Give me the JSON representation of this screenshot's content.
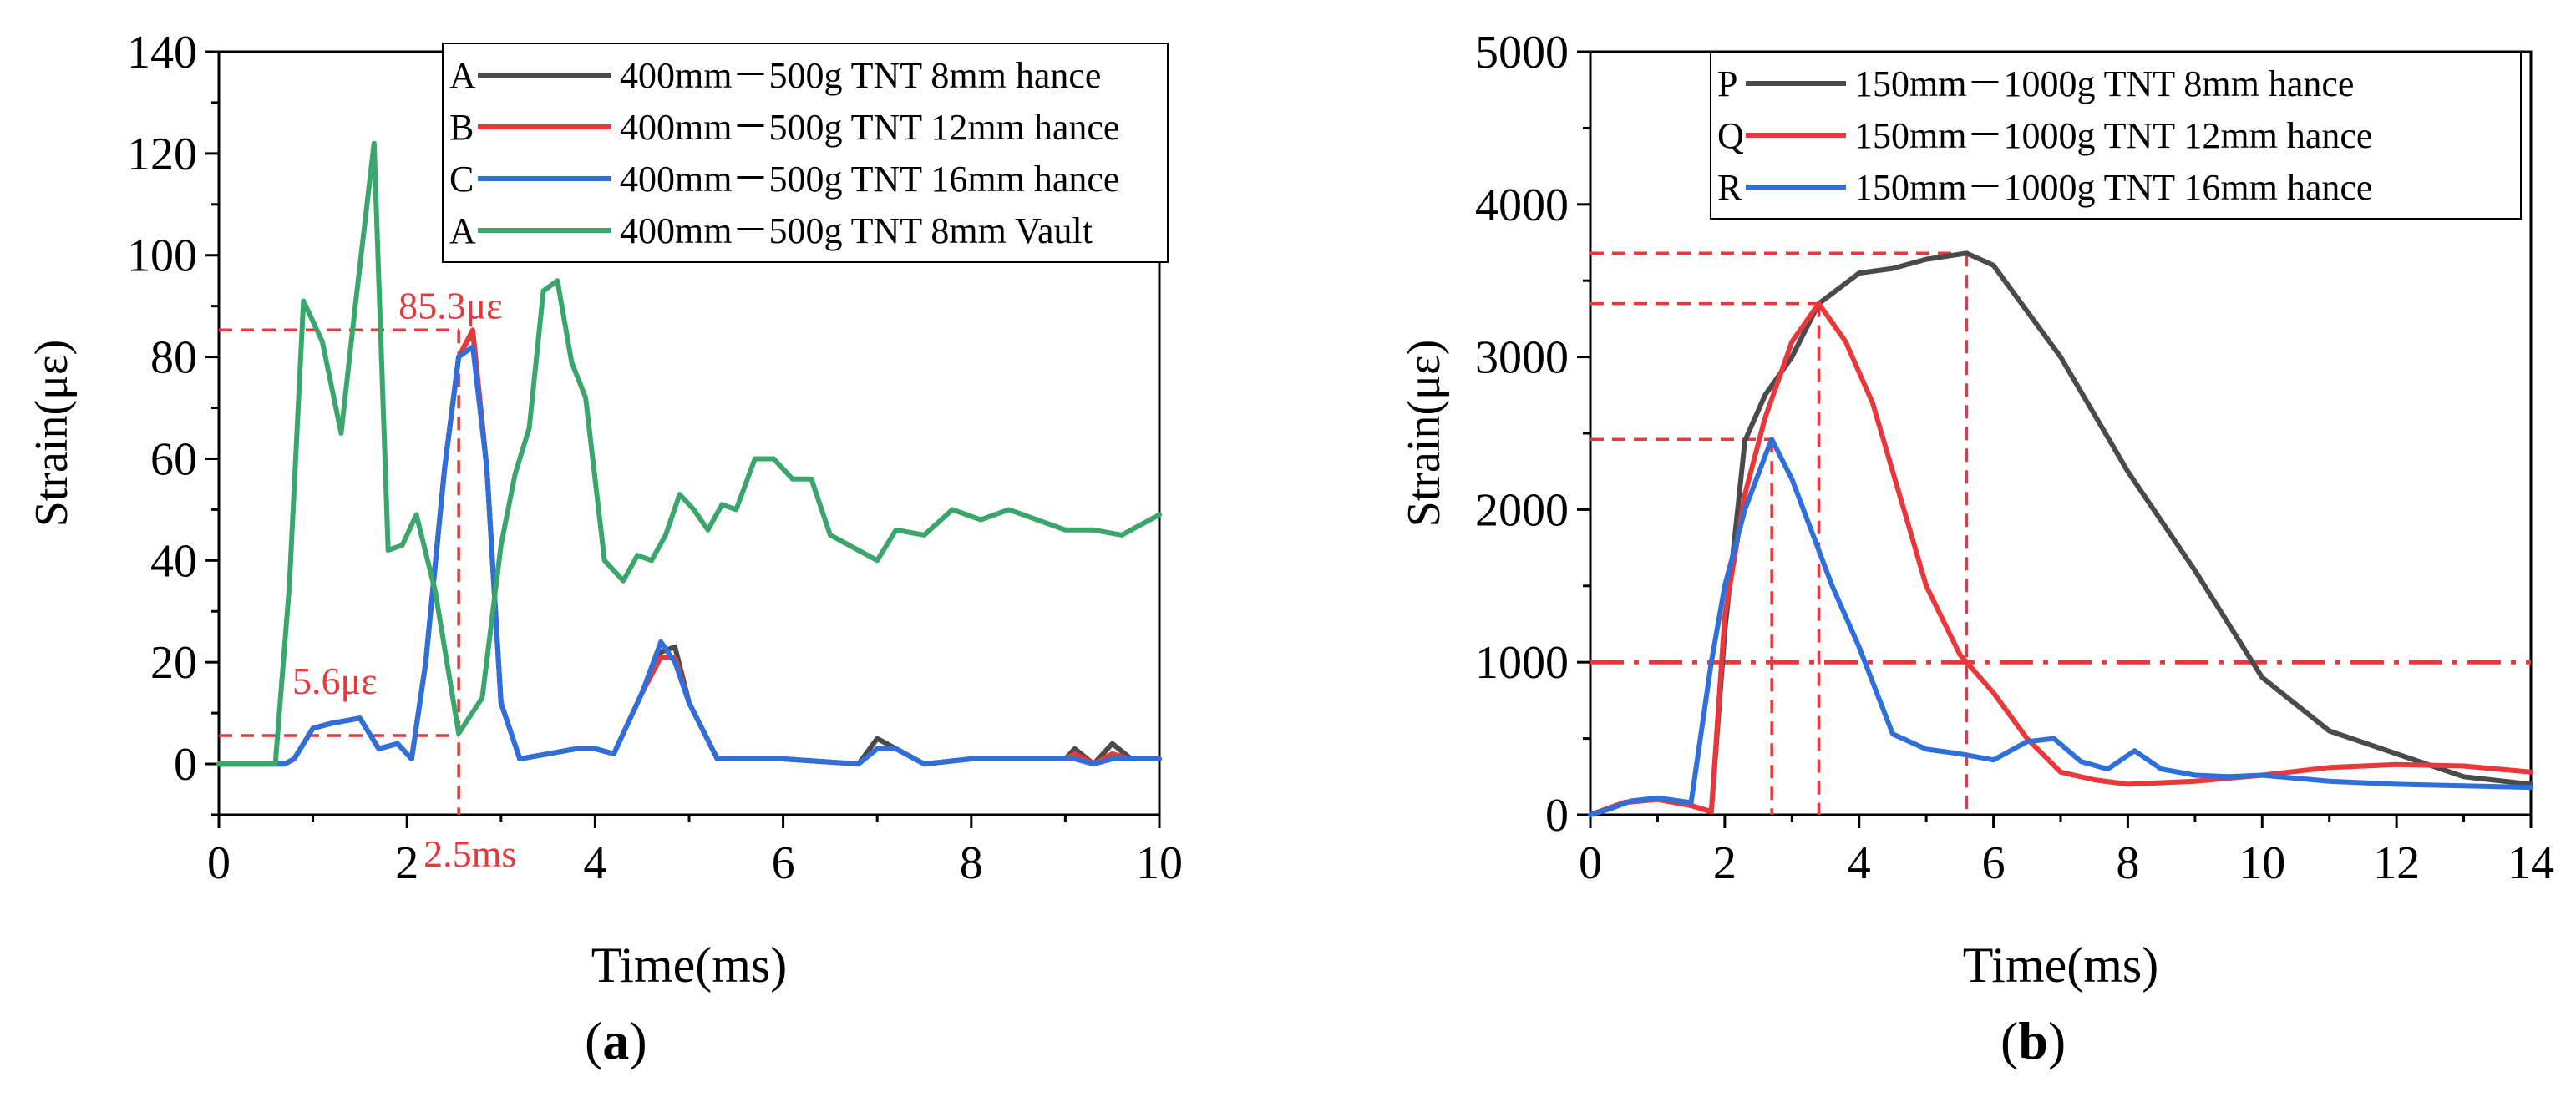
{
  "captions": {
    "a_open": "(",
    "a_letter": "a",
    "a_close": ")",
    "b_open": "(",
    "b_letter": "b",
    "b_close": ")"
  },
  "chart_data": [
    {
      "type": "line",
      "panel": "a",
      "xlabel": "Time(ms)",
      "ylabel": "Strain(με)",
      "xlim": [
        0,
        10
      ],
      "ylim": [
        -10,
        140
      ],
      "xticks": [
        0,
        2,
        4,
        6,
        8,
        10
      ],
      "yticks": [
        0,
        20,
        40,
        60,
        80,
        100,
        120,
        140
      ],
      "grid": false,
      "legend_position": "top-right",
      "series": [
        {
          "name": "A",
          "label": "400mm－500g TNT 8mm hance",
          "color": "#4a4a4a",
          "x": [
            0,
            0.7,
            0.8,
            1.0,
            1.2,
            1.5,
            1.7,
            1.9,
            2.05,
            2.2,
            2.4,
            2.55,
            2.7,
            2.85,
            3.0,
            3.2,
            3.5,
            3.8,
            4.0,
            4.2,
            4.5,
            4.7,
            4.85,
            5.0,
            5.3,
            6.0,
            6.8,
            7.0,
            7.2,
            7.5,
            8.0,
            9.0,
            9.1,
            9.3,
            9.5,
            9.7,
            10.0
          ],
          "y": [
            0,
            0,
            1,
            7,
            8,
            9,
            3,
            4,
            1,
            20,
            58,
            80,
            85,
            58,
            12,
            1,
            2,
            3,
            3,
            2,
            14,
            22,
            23,
            12,
            1,
            1,
            0,
            5,
            3,
            0,
            1,
            1,
            3,
            0,
            4,
            1,
            1
          ]
        },
        {
          "name": "B",
          "label": "400mm－500g TNT 12mm hance",
          "color": "#e8383b",
          "x": [
            0,
            0.7,
            0.8,
            1.0,
            1.2,
            1.5,
            1.7,
            1.9,
            2.05,
            2.2,
            2.4,
            2.55,
            2.7,
            2.85,
            3.0,
            3.2,
            3.5,
            3.8,
            4.0,
            4.2,
            4.5,
            4.7,
            4.85,
            5.0,
            5.3,
            6.0,
            6.8,
            7.0,
            7.2,
            7.5,
            8.0,
            9.0,
            9.1,
            9.3,
            9.5,
            9.7,
            10.0
          ],
          "y": [
            0,
            0,
            1,
            7,
            8,
            9,
            3,
            4,
            1,
            20,
            58,
            80,
            85.3,
            58,
            12,
            1,
            2,
            3,
            3,
            2,
            14,
            21,
            21,
            12,
            1,
            1,
            0,
            3,
            3,
            0,
            1,
            1,
            2,
            0,
            2,
            1,
            1
          ]
        },
        {
          "name": "C",
          "label": "400mm－500g TNT 16mm hance",
          "color": "#2e6fdb",
          "x": [
            0,
            0.7,
            0.8,
            1.0,
            1.2,
            1.5,
            1.7,
            1.9,
            2.05,
            2.2,
            2.4,
            2.55,
            2.7,
            2.85,
            3.0,
            3.2,
            3.5,
            3.8,
            4.0,
            4.2,
            4.5,
            4.7,
            4.85,
            5.0,
            5.3,
            6.0,
            6.8,
            7.0,
            7.2,
            7.5,
            8.0,
            9.0,
            9.1,
            9.3,
            9.5,
            9.7,
            10.0
          ],
          "y": [
            0,
            0,
            1,
            7,
            8,
            9,
            3,
            4,
            1,
            20,
            58,
            80,
            82,
            58,
            12,
            1,
            2,
            3,
            3,
            2,
            14,
            24,
            20,
            12,
            1,
            1,
            0,
            3,
            3,
            0,
            1,
            1,
            1,
            0,
            1,
            1,
            1
          ]
        },
        {
          "name": "A",
          "label": "400mm－500g TNT 8mm Vault",
          "color": "#3aa66b",
          "x": [
            0,
            0.6,
            0.75,
            0.9,
            1.1,
            1.3,
            1.45,
            1.65,
            1.8,
            1.95,
            2.1,
            2.3,
            2.55,
            2.8,
            3.0,
            3.15,
            3.3,
            3.45,
            3.6,
            3.75,
            3.9,
            4.1,
            4.3,
            4.45,
            4.6,
            4.75,
            4.9,
            5.05,
            5.2,
            5.35,
            5.5,
            5.7,
            5.9,
            6.1,
            6.3,
            6.5,
            6.8,
            7.0,
            7.2,
            7.5,
            7.8,
            8.1,
            8.4,
            8.7,
            9.0,
            9.3,
            9.6,
            10.0
          ],
          "y": [
            0,
            0,
            35,
            91,
            83,
            65,
            90,
            122,
            42,
            43,
            49,
            34,
            6,
            13,
            43,
            57,
            66,
            93,
            95,
            79,
            72,
            40,
            36,
            41,
            40,
            45,
            53,
            50,
            46,
            51,
            50,
            60,
            60,
            56,
            56,
            45,
            42,
            40,
            46,
            45,
            50,
            48,
            50,
            48,
            46,
            46,
            45,
            49
          ]
        }
      ],
      "annotations": [
        {
          "text": "85.3με",
          "x": 2.55,
          "y": 85.3
        },
        {
          "text": "5.6με",
          "x": 0,
          "y": 5.6
        },
        {
          "text": "2.5ms",
          "x": 2.55,
          "y": -10
        }
      ]
    },
    {
      "type": "line",
      "panel": "b",
      "xlabel": "Time(ms)",
      "ylabel": "Strain(με)",
      "xlim": [
        0,
        14
      ],
      "ylim": [
        0,
        5000
      ],
      "xticks": [
        0,
        2,
        4,
        6,
        8,
        10,
        12,
        14
      ],
      "yticks": [
        0,
        1000,
        2000,
        3000,
        4000,
        5000
      ],
      "grid": false,
      "legend_position": "top-right",
      "threshold": 1000,
      "series": [
        {
          "name": "P",
          "label": "150mm－1000g TNT 8mm hance",
          "color": "#4a4a4a",
          "x": [
            0,
            0.5,
            1.0,
            1.5,
            1.8,
            2.0,
            2.3,
            2.6,
            3.0,
            3.4,
            4.0,
            4.5,
            5.0,
            5.6,
            6.0,
            7.0,
            8.0,
            9.0,
            10.0,
            11.0,
            12.0,
            13.0,
            14.0
          ],
          "y": [
            0,
            80,
            110,
            60,
            20,
            1200,
            2450,
            2750,
            3000,
            3350,
            3550,
            3580,
            3640,
            3680,
            3600,
            3000,
            2250,
            1600,
            900,
            550,
            400,
            250,
            200
          ]
        },
        {
          "name": "Q",
          "label": "150mm－1000g TNT 12mm hance",
          "color": "#e8383b",
          "x": [
            0,
            0.5,
            1.0,
            1.5,
            1.8,
            2.0,
            2.3,
            2.6,
            3.0,
            3.4,
            3.8,
            4.2,
            4.6,
            5.0,
            5.5,
            6.0,
            6.5,
            7.0,
            7.5,
            8.0,
            9.0,
            10.0,
            11.0,
            12.0,
            13.0,
            14.0
          ],
          "y": [
            0,
            80,
            100,
            60,
            20,
            1300,
            2100,
            2600,
            3100,
            3350,
            3100,
            2700,
            2100,
            1500,
            1050,
            800,
            500,
            280,
            230,
            200,
            220,
            260,
            310,
            330,
            320,
            280
          ]
        },
        {
          "name": "R",
          "label": "150mm－1000g TNT 16mm hance",
          "color": "#2e6fdb",
          "x": [
            0,
            0.3,
            0.6,
            1.0,
            1.5,
            1.8,
            2.0,
            2.3,
            2.6,
            2.7,
            3.0,
            3.3,
            3.6,
            4.0,
            4.5,
            5.0,
            5.5,
            6.0,
            6.5,
            6.9,
            7.3,
            7.7,
            8.1,
            8.5,
            9.0,
            9.5,
            10.0,
            11.0,
            12.0,
            13.0,
            14.0
          ],
          "y": [
            0,
            40,
            90,
            110,
            80,
            1000,
            1500,
            2000,
            2350,
            2460,
            2200,
            1850,
            1500,
            1100,
            530,
            430,
            400,
            360,
            480,
            500,
            350,
            300,
            420,
            300,
            260,
            250,
            260,
            220,
            200,
            190,
            180
          ]
        }
      ],
      "reference_points": [
        {
          "x": 2.7,
          "y": 2460
        },
        {
          "x": 3.4,
          "y": 3350
        },
        {
          "x": 5.6,
          "y": 3680
        }
      ]
    }
  ]
}
